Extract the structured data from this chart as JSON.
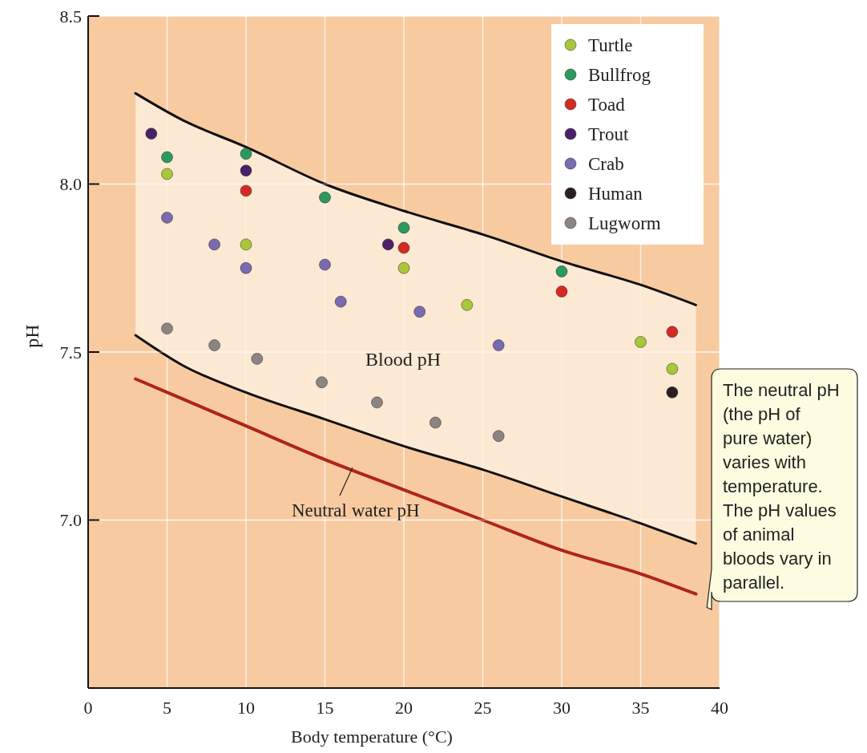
{
  "chart_data": {
    "type": "scatter",
    "xlabel": "Body temperature (°C)",
    "ylabel": "pH",
    "xlim": [
      0,
      40
    ],
    "xticks": [
      0,
      5,
      10,
      15,
      20,
      25,
      30,
      35,
      40
    ],
    "ylim": [
      6.5,
      8.5
    ],
    "yticks": [
      {
        "value": 7,
        "label": "7.0"
      },
      {
        "value": 7.5,
        "label": "7.5"
      },
      {
        "value": 8,
        "label": "8.0"
      },
      {
        "value": 8.5,
        "label": "8.5"
      }
    ],
    "grid": true,
    "legend": "top right",
    "marker": "circle",
    "series": [
      {
        "name": "Turtle",
        "color": "#a8c83a",
        "x": [
          5,
          10,
          20,
          24,
          35,
          37
        ],
        "values": [
          8.03,
          7.82,
          7.75,
          7.64,
          7.53,
          7.45
        ]
      },
      {
        "name": "Bullfrog",
        "color": "#2a9a5e",
        "x": [
          5,
          10,
          15,
          20,
          30
        ],
        "values": [
          8.08,
          8.09,
          7.96,
          7.87,
          7.74
        ]
      },
      {
        "name": "Toad",
        "color": "#d42a22",
        "x": [
          10,
          20,
          30,
          37
        ],
        "values": [
          7.98,
          7.81,
          7.68,
          7.56
        ]
      },
      {
        "name": "Trout",
        "color": "#4a2068",
        "x": [
          4,
          10,
          19
        ],
        "values": [
          8.15,
          8.04,
          7.82
        ]
      },
      {
        "name": "Crab",
        "color": "#7a6ab0",
        "x": [
          5,
          8,
          10,
          15,
          16,
          21,
          26
        ],
        "values": [
          7.9,
          7.82,
          7.75,
          7.76,
          7.65,
          7.62,
          7.52
        ]
      },
      {
        "name": "Human",
        "color": "#2a2020",
        "x": [
          37
        ],
        "values": [
          7.38
        ]
      },
      {
        "name": "Lugworm",
        "color": "#8a8580",
        "x": [
          5,
          8,
          10.7,
          14.8,
          18.3,
          22,
          26
        ],
        "values": [
          7.57,
          7.52,
          7.48,
          7.41,
          7.35,
          7.29,
          7.25
        ]
      },
      {
        "type": "line",
        "marker": "none",
        "color": "#fdeedd",
        "x": [
          3,
          6,
          10,
          15,
          20,
          25,
          30,
          35,
          38.5
        ],
        "values": [
          null,
          null,
          null,
          null,
          null,
          null,
          null,
          null,
          null
        ],
        "lower": [
          7.55,
          7.46,
          7.38,
          7.3,
          7.22,
          7.15,
          7.07,
          6.99,
          6.93
        ],
        "upper": [
          8.27,
          8.19,
          8.11,
          8.0,
          7.92,
          7.85,
          7.77,
          7.7,
          7.64
        ]
      },
      {
        "type": "line",
        "marker": "none",
        "color": "#111111",
        "x": [
          3,
          6,
          10,
          15,
          20,
          25,
          30,
          35,
          38.5
        ],
        "values": [
          8.27,
          8.19,
          8.11,
          8.0,
          7.92,
          7.85,
          7.77,
          7.7,
          7.64
        ]
      },
      {
        "type": "line",
        "marker": "none",
        "color": "#111111",
        "x": [
          3,
          6,
          10,
          15,
          20,
          25,
          30,
          35,
          38.5
        ],
        "values": [
          7.55,
          7.46,
          7.38,
          7.3,
          7.22,
          7.15,
          7.07,
          6.99,
          6.93
        ]
      },
      {
        "type": "line",
        "marker": "none",
        "color": "#b02418",
        "x": [
          3,
          6,
          10,
          15,
          20,
          25,
          30,
          35,
          38.5
        ],
        "values": [
          7.42,
          7.36,
          7.28,
          7.18,
          7.09,
          7.0,
          6.91,
          6.84,
          6.78
        ]
      }
    ],
    "annotations": [
      "Blood pH",
      "Neutral water pH",
      "The neutral pH (the pH of pure water) varies with temperature. The pH values of animal bloods vary in parallel."
    ]
  }
}
